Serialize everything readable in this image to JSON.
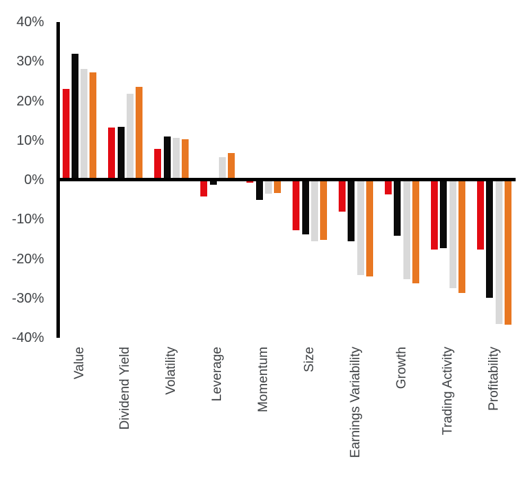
{
  "chart_data": {
    "type": "bar",
    "title": "",
    "xlabel": "",
    "ylabel": "",
    "ylim": [
      -40,
      40
    ],
    "grid": false,
    "legend": "none",
    "bar_layout": "grouped",
    "categories": [
      "Value",
      "Dividend Yield",
      "Volatility",
      "Leverage",
      "Momentum",
      "Size",
      "Earnings Variability",
      "Growth",
      "Trading Activity",
      "Profitability"
    ],
    "series": [
      {
        "name": "series-1-red",
        "color": "#e30b13",
        "values": [
          23.0,
          13.2,
          7.8,
          -4.0,
          -0.5,
          -12.6,
          -7.9,
          -3.5,
          -17.5,
          -17.5
        ]
      },
      {
        "name": "series-2-black",
        "color": "#0a0a0a",
        "values": [
          31.9,
          13.4,
          11.0,
          -1.0,
          -4.9,
          -13.7,
          -15.3,
          -14.0,
          -17.2,
          -29.7
        ]
      },
      {
        "name": "series-3-gray",
        "color": "#d9d9d9",
        "values": [
          28.1,
          21.8,
          10.6,
          5.7,
          -3.4,
          -15.4,
          -23.9,
          -25.0,
          -27.2,
          -36.3
        ]
      },
      {
        "name": "series-4-orange",
        "color": "#e87722",
        "values": [
          27.2,
          23.6,
          10.3,
          6.8,
          -3.1,
          -15.0,
          -24.2,
          -26.0,
          -28.5,
          -36.5
        ]
      }
    ],
    "yticks": [
      {
        "label": "40%",
        "value": 40
      },
      {
        "label": "30%",
        "value": 30
      },
      {
        "label": "20%",
        "value": 20
      },
      {
        "label": "10%",
        "value": 10
      },
      {
        "label": "0%",
        "value": 0
      },
      {
        "label": "-10%",
        "value": -10
      },
      {
        "label": "-20%",
        "value": -20
      },
      {
        "label": "-30%",
        "value": -30
      },
      {
        "label": "-40%",
        "value": -40
      }
    ]
  },
  "style": {
    "background": "#ffffff",
    "axis_color": "#000000",
    "tick_label_color": "#3f4245"
  }
}
